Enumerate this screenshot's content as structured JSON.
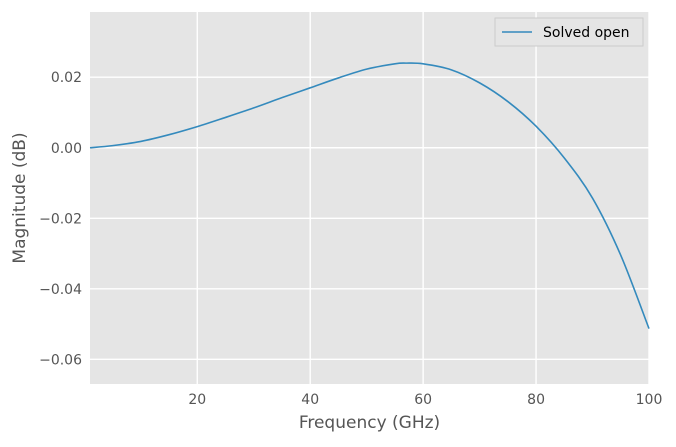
{
  "chart_data": {
    "type": "line",
    "title": "",
    "xlabel": "Frequency (GHz)",
    "ylabel": "Magnitude (dB)",
    "xlim": [
      1,
      100
    ],
    "ylim": [
      -0.067,
      0.0385
    ],
    "x_ticks": [
      20,
      40,
      60,
      80,
      100
    ],
    "y_ticks": [
      0.02,
      0.0,
      -0.02,
      -0.04,
      -0.06
    ],
    "x_tick_labels": [
      "20",
      "40",
      "60",
      "80",
      "100"
    ],
    "y_tick_labels": [
      "0.02",
      "0.00",
      "−0.02",
      "−0.04",
      "−0.06"
    ],
    "grid": true,
    "legend_position": "top-right",
    "series": [
      {
        "name": "Solved open",
        "color": "#348abd",
        "x": [
          1,
          5,
          10,
          15,
          20,
          25,
          30,
          35,
          40,
          45,
          50,
          55,
          57,
          60,
          65,
          70,
          75,
          80,
          85,
          90,
          95,
          100
        ],
        "y": [
          0.0,
          0.0006,
          0.0018,
          0.0037,
          0.006,
          0.0086,
          0.0113,
          0.0142,
          0.017,
          0.0198,
          0.0223,
          0.0238,
          0.024,
          0.0238,
          0.0221,
          0.0184,
          0.0131,
          0.0061,
          -0.0029,
          -0.0143,
          -0.0305,
          -0.0513
        ]
      }
    ]
  }
}
